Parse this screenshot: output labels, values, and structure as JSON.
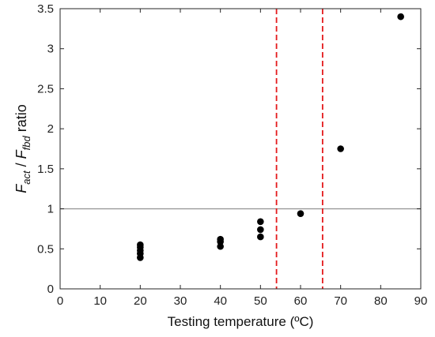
{
  "chart_data": {
    "type": "scatter",
    "title": "",
    "xlabel": "Testing temperature (ºC)",
    "ylabel": {
      "F1": "F",
      "sub1": "act",
      "sep": " / ",
      "F2": "F",
      "sub2": "fbd",
      "suffix": " ratio"
    },
    "xlim": [
      0,
      90
    ],
    "ylim": [
      0,
      3.5
    ],
    "xticks": [
      0,
      10,
      20,
      30,
      40,
      50,
      60,
      70,
      80,
      90
    ],
    "xtick_labels": [
      "0",
      "10",
      "20",
      "30",
      "40",
      "50",
      "60",
      "70",
      "80",
      "90"
    ],
    "yticks": [
      0,
      0.5,
      1,
      1.5,
      2,
      2.5,
      3,
      3.5
    ],
    "ytick_labels": [
      "0",
      "0.5",
      "1",
      "1.5",
      "2",
      "2.5",
      "3",
      "3.5"
    ],
    "grid": false,
    "series": [
      {
        "x": [
          20,
          20,
          20,
          20,
          20,
          40,
          40,
          40,
          50,
          50,
          50,
          60,
          70,
          85
        ],
        "y": [
          0.39,
          0.44,
          0.48,
          0.52,
          0.55,
          0.53,
          0.59,
          0.62,
          0.65,
          0.74,
          0.84,
          0.94,
          1.75,
          3.4
        ],
        "color": "#000000"
      }
    ],
    "reference_lines": [
      {
        "orientation": "horizontal",
        "value": 1,
        "color": "#9a9a9a",
        "style": "solid"
      },
      {
        "orientation": "vertical",
        "value": 54,
        "color": "#e41a1c",
        "style": "dashed"
      },
      {
        "orientation": "vertical",
        "value": 65.5,
        "color": "#e41a1c",
        "style": "dashed"
      }
    ]
  }
}
